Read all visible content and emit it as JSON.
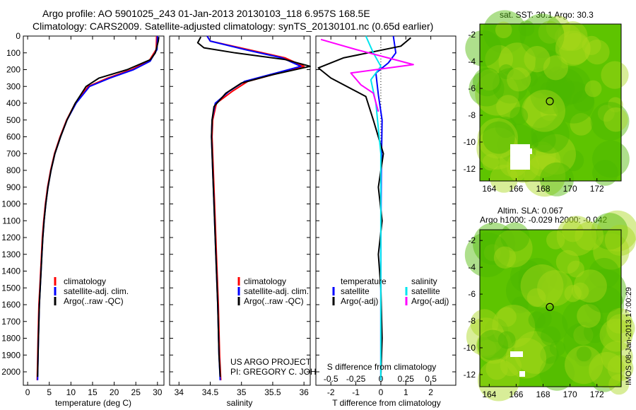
{
  "titles": {
    "line1": "Argo profile: AO 5901025_243 01-Jan-2013 20130103_118 6.957S 168.5E",
    "line2": "Climatology: CARS2009. Satellite-adjusted climatology: synTS_20130101.nc (0.65d earlier)"
  },
  "map_labels": {
    "sst": "sat. SST: 30.1 Argo: 30.3",
    "sla1": "Altim. SLA: 0.067",
    "sla2": "Argo h1000: -0.029 h2000: -0.042",
    "credit": "IMOS 08-Jan-2013 17:00:29"
  },
  "project": {
    "line1": "US ARGO PROJECT",
    "line2": "PI: GREGORY C. JOHNSON"
  },
  "colors": {
    "climatology": "#ff0000",
    "satellite": "#0000ff",
    "argo": "#000000",
    "sat_s": "#00e5ee",
    "argo_s": "#ff00ff"
  },
  "chart_data": [
    {
      "type": "line",
      "xlabel": "temperature (deg C)",
      "ylabel": "",
      "xlim": [
        -1,
        31.5
      ],
      "ylim": [
        2080,
        0
      ],
      "xticks": [
        0,
        5,
        10,
        15,
        20,
        25,
        30
      ],
      "yticks": [
        0,
        100,
        200,
        300,
        400,
        500,
        600,
        700,
        800,
        900,
        1000,
        1100,
        1200,
        1300,
        1400,
        1500,
        1600,
        1700,
        1800,
        1900,
        2000
      ],
      "legend": [
        "climatology",
        "satellite-adj. clim.",
        "Argo(..raw -QC)"
      ],
      "series": [
        {
          "name": "climatology",
          "color": "#ff0000",
          "x": [
            29.8,
            29.7,
            28.0,
            24.0,
            18.5,
            14.0,
            11.0,
            9.0,
            7.5,
            6.2,
            5.3,
            4.6,
            4.1,
            3.7,
            3.4,
            3.2,
            3.0,
            2.8,
            2.6,
            2.4,
            2.2
          ],
          "y": [
            0,
            80,
            150,
            200,
            250,
            300,
            400,
            500,
            600,
            700,
            800,
            900,
            1000,
            1100,
            1200,
            1300,
            1400,
            1500,
            1600,
            1800,
            2050
          ]
        },
        {
          "name": "satellite-adj. clim.",
          "color": "#0000ff",
          "x": [
            30.0,
            29.9,
            28.3,
            24.5,
            19.0,
            14.3,
            11.2,
            9.1,
            7.6,
            6.3,
            5.4,
            4.7,
            4.2,
            3.8,
            3.5,
            3.3,
            3.1,
            2.9,
            2.7,
            2.5,
            2.3
          ],
          "y": [
            0,
            80,
            150,
            200,
            250,
            300,
            400,
            500,
            600,
            700,
            800,
            900,
            1000,
            1100,
            1200,
            1300,
            1400,
            1500,
            1600,
            1800,
            2050
          ]
        },
        {
          "name": "Argo(..raw -QC)",
          "color": "#000000",
          "x": [
            30.3,
            30.2,
            29.5,
            28.4,
            23.0,
            16.5,
            13.5,
            11.0,
            9.1,
            7.6,
            6.3,
            5.4,
            4.7,
            4.2,
            3.8,
            3.5,
            3.3,
            3.1,
            2.9,
            2.7,
            2.5,
            2.3
          ],
          "y": [
            5,
            30,
            100,
            140,
            200,
            250,
            300,
            400,
            500,
            600,
            700,
            800,
            900,
            1000,
            1100,
            1200,
            1300,
            1400,
            1500,
            1600,
            1800,
            2030
          ]
        }
      ]
    },
    {
      "type": "line",
      "xlabel": "salinity",
      "ylabel": "",
      "xlim": [
        33.85,
        36.1
      ],
      "ylim": [
        2080,
        0
      ],
      "xticks": [
        34,
        34.5,
        35,
        35.5,
        36
      ],
      "legend": [
        "climatology",
        "satellite-adj. clim.",
        "Argo(..raw -QC)"
      ],
      "series": [
        {
          "name": "climatology",
          "color": "#ff0000",
          "x": [
            34.45,
            34.5,
            35.1,
            35.7,
            36.0,
            35.6,
            35.1,
            34.85,
            34.6,
            34.54,
            34.53,
            34.55,
            34.57,
            34.6,
            34.63,
            34.65,
            34.67
          ],
          "y": [
            0,
            30,
            80,
            130,
            180,
            220,
            270,
            330,
            400,
            500,
            600,
            800,
            1000,
            1300,
            1600,
            1900,
            2050
          ]
        },
        {
          "name": "satellite-adj. clim.",
          "color": "#0000ff",
          "x": [
            34.45,
            34.5,
            35.05,
            35.65,
            35.95,
            35.55,
            35.05,
            34.8,
            34.58,
            34.53,
            34.52,
            34.54,
            34.56,
            34.59,
            34.62,
            34.64,
            34.66
          ],
          "y": [
            0,
            30,
            80,
            130,
            180,
            220,
            270,
            330,
            400,
            500,
            600,
            800,
            1000,
            1300,
            1600,
            1900,
            2050
          ]
        },
        {
          "name": "Argo(..raw -QC)",
          "color": "#000000",
          "x": [
            34.35,
            34.3,
            34.4,
            34.9,
            35.7,
            36.1,
            35.5,
            35.0,
            34.75,
            34.56,
            34.53,
            34.52,
            34.54,
            34.56,
            34.59,
            34.62,
            34.64,
            34.66
          ],
          "y": [
            5,
            40,
            70,
            100,
            140,
            180,
            230,
            280,
            340,
            420,
            500,
            600,
            800,
            1000,
            1300,
            1600,
            1900,
            2030
          ]
        }
      ]
    },
    {
      "type": "line",
      "xlabel": "T difference from climatology",
      "x2label": "S difference from climatology",
      "ylabel": "",
      "xlim": [
        -2.6,
        3.0
      ],
      "ylim": [
        2080,
        0
      ],
      "xticks": [
        -2,
        -1,
        0,
        1,
        2
      ],
      "x2ticks": [
        -0.5,
        -0.25,
        0,
        0.25,
        0.5
      ],
      "legend_titles": [
        "temperature",
        "salinity"
      ],
      "legend": [
        "satellite",
        "Argo(-adj)",
        "satellite",
        "Argo(-adj)"
      ],
      "series": [
        {
          "name": "satellite",
          "color": "#0000ff",
          "x": [
            0.5,
            0.6,
            0.3,
            -0.2,
            -0.1,
            0.05,
            0.02,
            0.0,
            0.0,
            0.0
          ],
          "y": [
            0,
            100,
            160,
            220,
            350,
            500,
            800,
            1200,
            1600,
            2050
          ]
        },
        {
          "name": "Argo(-adj)",
          "color": "#000000",
          "x": [
            1.2,
            0.8,
            -1.5,
            -2.5,
            -2.0,
            -0.6,
            -0.3,
            0.1,
            -0.1,
            0.05,
            -0.1,
            0.0,
            0.05,
            0.0
          ],
          "y": [
            10,
            60,
            130,
            190,
            250,
            360,
            500,
            700,
            900,
            1100,
            1300,
            1500,
            1800,
            2030
          ]
        },
        {
          "name": "satellite",
          "color": "#00e5ee",
          "x": [
            -0.6,
            -0.3,
            0.0,
            -0.4,
            -0.2,
            0.0,
            0.0,
            0.0
          ],
          "y": [
            0,
            100,
            180,
            260,
            400,
            700,
            1200,
            2050
          ]
        },
        {
          "name": "Argo(-adj)",
          "color": "#ff00ff",
          "x": [
            -2.4,
            -1.0,
            0.8,
            1.3,
            -1.2,
            -0.8,
            -0.3,
            -0.1
          ],
          "y": [
            20,
            80,
            150,
            170,
            220,
            290,
            340,
            450
          ]
        }
      ]
    }
  ],
  "maps": [
    {
      "xticks": [
        164,
        166,
        168,
        170,
        172
      ],
      "yticks": [
        -2,
        -4,
        -6,
        -8,
        -10,
        -12
      ],
      "marker": "168.5E 6.957S"
    },
    {
      "xticks": [
        164,
        166,
        168,
        170,
        172
      ],
      "yticks": [
        -2,
        -4,
        -6,
        -8,
        -10,
        -12
      ],
      "marker": "168.5E 6.957S"
    }
  ]
}
